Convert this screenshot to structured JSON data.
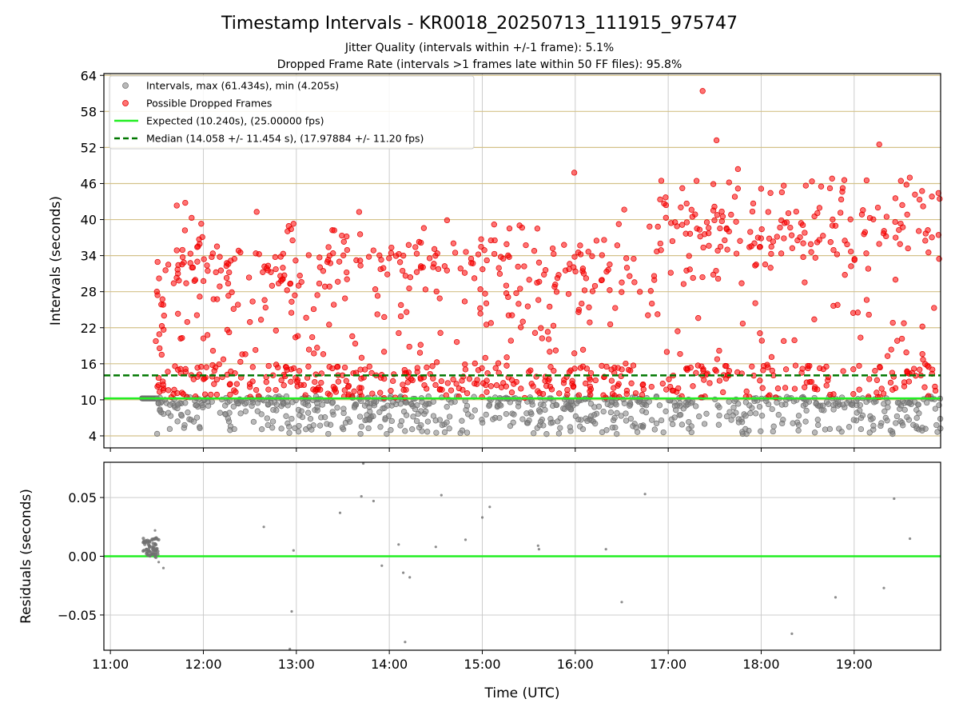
{
  "chart_data": [
    {
      "type": "scatter",
      "title": "Timestamp Intervals - KR0018_20250713_111915_975747",
      "subtitle_lines": [
        "Jitter Quality (intervals within +/-1 frame): 5.1%",
        "Dropped Frame Rate (intervals >1 frames late within 50 FF files): 95.8%"
      ],
      "xlabel": "",
      "ylabel": "Intervals (seconds)",
      "xlim_hours": [
        10.93,
        19.93
      ],
      "ylim": [
        2,
        64.3
      ],
      "yticks": [
        4,
        10,
        16,
        22,
        28,
        34,
        40,
        46,
        52,
        58,
        64
      ],
      "xticks": [
        "11:00",
        "12:00",
        "13:00",
        "14:00",
        "15:00",
        "16:00",
        "17:00",
        "18:00",
        "19:00"
      ],
      "grid": true,
      "legend_position": "top-left",
      "legend": {
        "intervals": "Intervals, max (61.434s), min (4.205s)",
        "dropped": "Possible Dropped Frames",
        "expected": "Expected (10.240s), (25.00000 fps)",
        "median": "Median (14.058 +/- 11.454 s), (17.97884 +/- 11.20 fps)"
      },
      "expected_interval": 10.24,
      "median_interval": 14.058,
      "max_interval": 61.434,
      "min_interval": 4.205,
      "colors": {
        "intervals": "#808080",
        "dropped": "#ff0000",
        "expected": "#22ee22",
        "median": "#007700",
        "hgrid": "#d4c28a",
        "vgrid": "#cccccc"
      },
      "series": [
        {
          "name": "Possible Dropped Frames",
          "approximate_count": 1000,
          "note": "dense band 11.5h–19.93h, values roughly 11–48 s with a few outliers",
          "sample_points": [
            [
              17.37,
              61.4
            ],
            [
              17.52,
              53.2
            ],
            [
              19.27,
              52.5
            ],
            [
              15.99,
              47.8
            ],
            [
              17.75,
              48.4
            ],
            [
              12.97,
              39.3
            ],
            [
              11.5,
              28.0
            ]
          ]
        },
        {
          "name": "Intervals",
          "approximate_count": 700,
          "note": "values roughly 4.2–10.5 s, plus a flat cluster at 10.24 s between 11.33h and 11.5h"
        }
      ]
    },
    {
      "type": "scatter",
      "xlabel": "Time (UTC)",
      "ylabel": "Residuals (seconds)",
      "xlim_hours": [
        10.93,
        19.93
      ],
      "ylim": [
        -0.08,
        0.08
      ],
      "yticks": [
        -0.05,
        0.0,
        0.05
      ],
      "ytick_labels": [
        "−0.05",
        "0.00",
        "0.05"
      ],
      "xticks": [
        "11:00",
        "12:00",
        "13:00",
        "14:00",
        "15:00",
        "16:00",
        "17:00",
        "18:00",
        "19:00"
      ],
      "grid": true,
      "zero_line_color": "#22ee22",
      "points": [
        [
          12.65,
          0.025
        ],
        [
          12.95,
          -0.047
        ],
        [
          12.97,
          0.005
        ],
        [
          12.93,
          -0.079
        ],
        [
          13.47,
          0.037
        ],
        [
          13.7,
          0.051
        ],
        [
          13.72,
          0.079
        ],
        [
          13.83,
          0.047
        ],
        [
          13.92,
          -0.008
        ],
        [
          14.1,
          0.01
        ],
        [
          14.15,
          -0.014
        ],
        [
          14.17,
          -0.073
        ],
        [
          14.22,
          -0.018
        ],
        [
          14.5,
          0.008
        ],
        [
          14.56,
          0.052
        ],
        [
          14.82,
          0.014
        ],
        [
          15.0,
          0.033
        ],
        [
          15.08,
          0.042
        ],
        [
          15.6,
          0.009
        ],
        [
          15.61,
          0.006
        ],
        [
          16.33,
          0.006
        ],
        [
          16.5,
          -0.039
        ],
        [
          16.75,
          0.053
        ],
        [
          18.33,
          -0.066
        ],
        [
          18.8,
          -0.035
        ],
        [
          19.32,
          -0.027
        ],
        [
          19.43,
          0.049
        ],
        [
          19.6,
          0.015
        ],
        [
          11.57,
          -0.01
        ],
        [
          11.52,
          -0.005
        ],
        [
          11.48,
          0.022
        ]
      ],
      "cluster_note": "dense cluster of ~60 residual points between 11.35h and 11.52h with values -0.002 to 0.016"
    }
  ]
}
